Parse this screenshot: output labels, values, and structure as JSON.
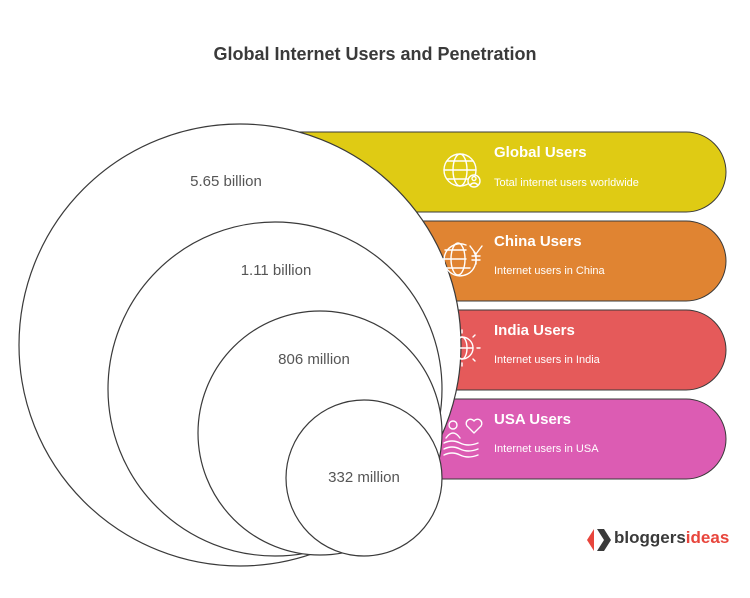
{
  "title": "Global Internet Users and Penetration",
  "colors": {
    "global": "#dfcb14",
    "china": "#e08432",
    "india": "#e55a5a",
    "usa": "#dc5cb3"
  },
  "items": [
    {
      "value": "5.65 billion",
      "title": "Global Users",
      "desc": "Total internet users worldwide",
      "icon": "globe-user-icon"
    },
    {
      "value": "1.11 billion",
      "title": "China Users",
      "desc": "Internet users in China",
      "icon": "globe-yuan-icon"
    },
    {
      "value": "806 million",
      "title": "India Users",
      "desc": "Internet users in India",
      "icon": "globe-sparkle-icon"
    },
    {
      "value": "332 million",
      "title": "USA Users",
      "desc": "Internet users in USA",
      "icon": "people-flag-icon"
    }
  ],
  "brand": {
    "part1": "bloggers",
    "part2": "ideas"
  }
}
